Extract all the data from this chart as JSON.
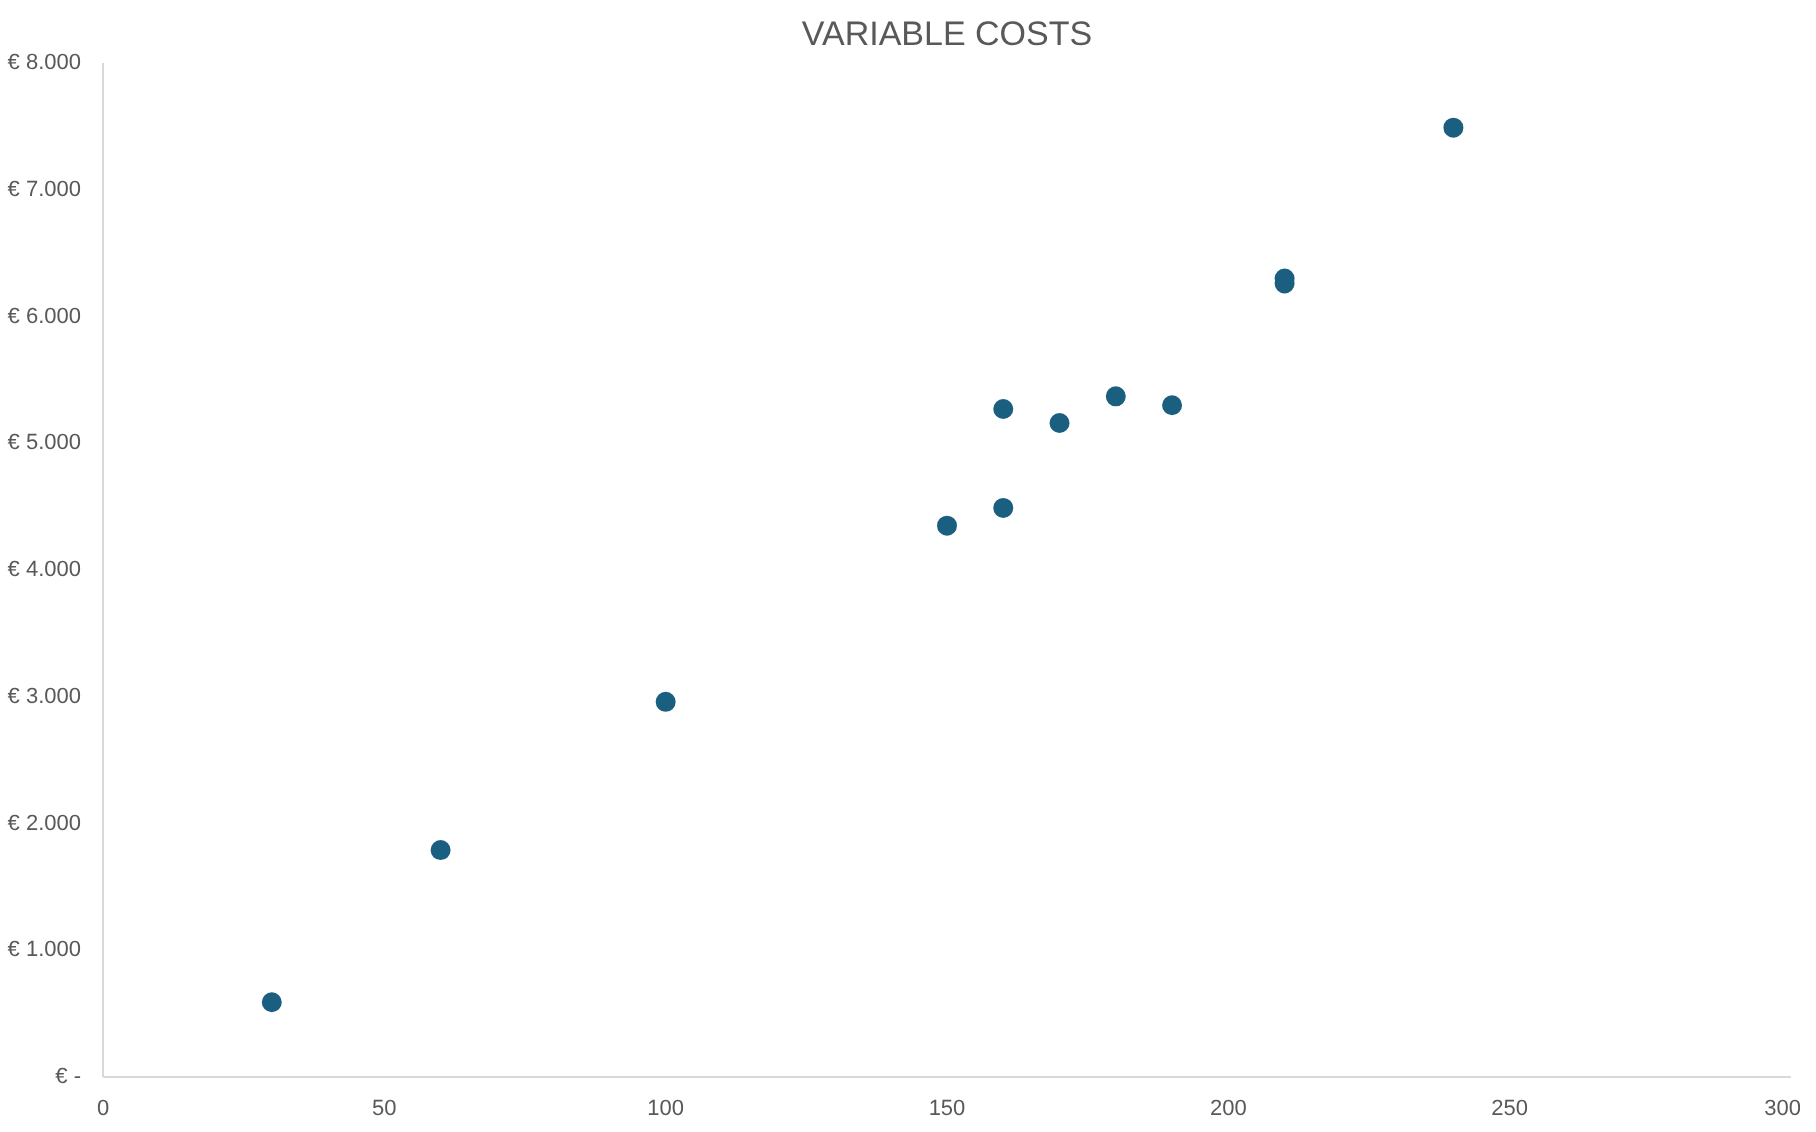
{
  "chart_data": {
    "type": "scatter",
    "title": "VARIABLE COSTS",
    "x": [
      30,
      60,
      100,
      150,
      160,
      160,
      170,
      180,
      190,
      210,
      210,
      240
    ],
    "series": [
      {
        "color": "#1b5f80",
        "values": [
          590,
          1790,
          2960,
          4350,
          4490,
          5270,
          5160,
          5370,
          5300,
          6300,
          6260,
          7490
        ]
      }
    ],
    "xlim": [
      0,
      300
    ],
    "xticks": [
      0,
      50,
      100,
      150,
      200,
      250,
      300
    ],
    "ylim": [
      0,
      8000
    ],
    "yticks": [
      {
        "value": 0,
        "label": "€ -"
      },
      {
        "value": 1000,
        "label": "€ 1.000"
      },
      {
        "value": 2000,
        "label": "€ 2.000"
      },
      {
        "value": 3000,
        "label": "€ 3.000"
      },
      {
        "value": 4000,
        "label": "€ 4.000"
      },
      {
        "value": 5000,
        "label": "€ 5.000"
      },
      {
        "value": 6000,
        "label": "€ 6.000"
      },
      {
        "value": 7000,
        "label": "€ 7.000"
      },
      {
        "value": 8000,
        "label": "€ 8.000"
      }
    ],
    "grid": false,
    "marker": "circle"
  }
}
